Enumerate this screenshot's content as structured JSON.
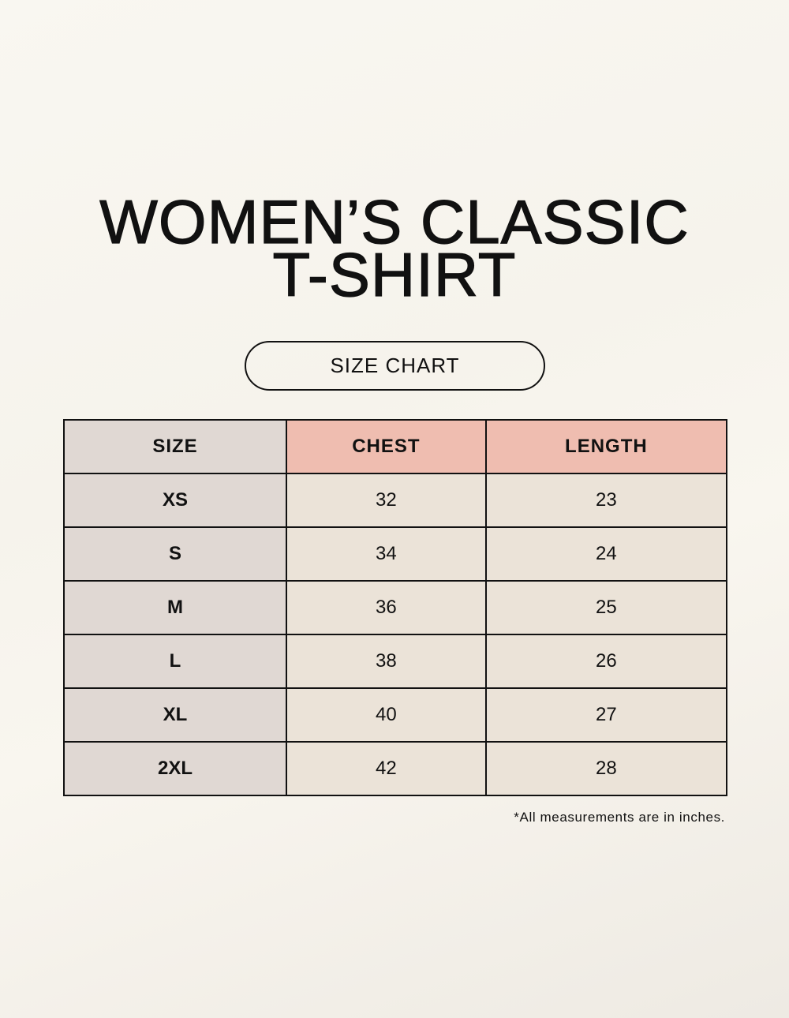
{
  "title_line1": "WOMEN’S CLASSIC",
  "title_line2": "T-SHIRT",
  "badge": "SIZE CHART",
  "colors": {
    "size_column": "#e0d8d3",
    "measure_header": "#efbdb0",
    "cells": "#ebe3d8",
    "background": "#f8f6f0"
  },
  "table": {
    "headers": [
      "SIZE",
      "CHEST",
      "LENGTH"
    ],
    "rows": [
      [
        "XS",
        "32",
        "23"
      ],
      [
        "S",
        "34",
        "24"
      ],
      [
        "M",
        "36",
        "25"
      ],
      [
        "L",
        "38",
        "26"
      ],
      [
        "XL",
        "40",
        "27"
      ],
      [
        "2XL",
        "42",
        "28"
      ]
    ]
  },
  "note": "*All measurements are in inches."
}
